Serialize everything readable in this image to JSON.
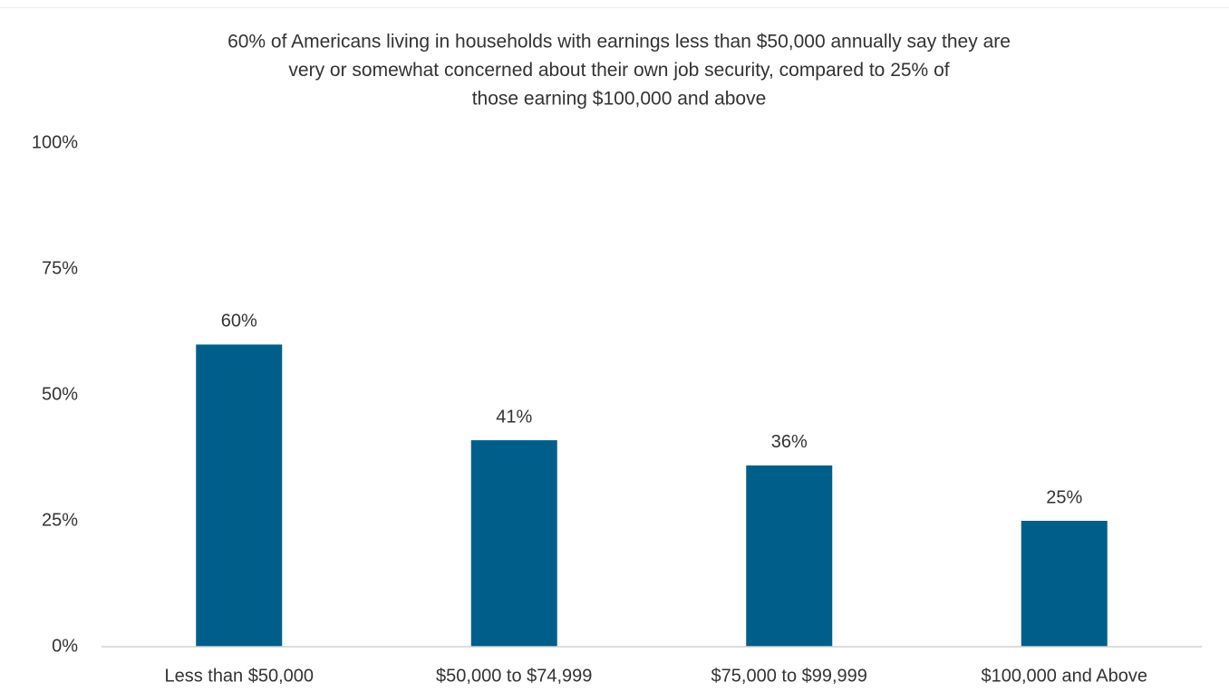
{
  "chart_data": {
    "type": "bar",
    "title": [
      "60% of Americans living in households with earnings less than $50,000 annually say they are",
      "very or somewhat concerned about their own job security, compared to 25% of",
      "those earning $100,000 and above"
    ],
    "categories": [
      "Less than $50,000",
      "$50,000 to $74,999",
      "$75,000 to $99,999",
      "$100,000 and Above"
    ],
    "values": [
      60,
      41,
      36,
      25
    ],
    "value_labels": [
      "60%",
      "41%",
      "36%",
      "25%"
    ],
    "color": "#005f8a",
    "ylim": [
      0,
      100
    ],
    "yticks": [
      {
        "value": 0,
        "label": "0%"
      },
      {
        "value": 25,
        "label": "25%"
      },
      {
        "value": 50,
        "label": "50%"
      },
      {
        "value": 75,
        "label": "75%"
      },
      {
        "value": 100,
        "label": "100%"
      }
    ],
    "grid": false
  }
}
